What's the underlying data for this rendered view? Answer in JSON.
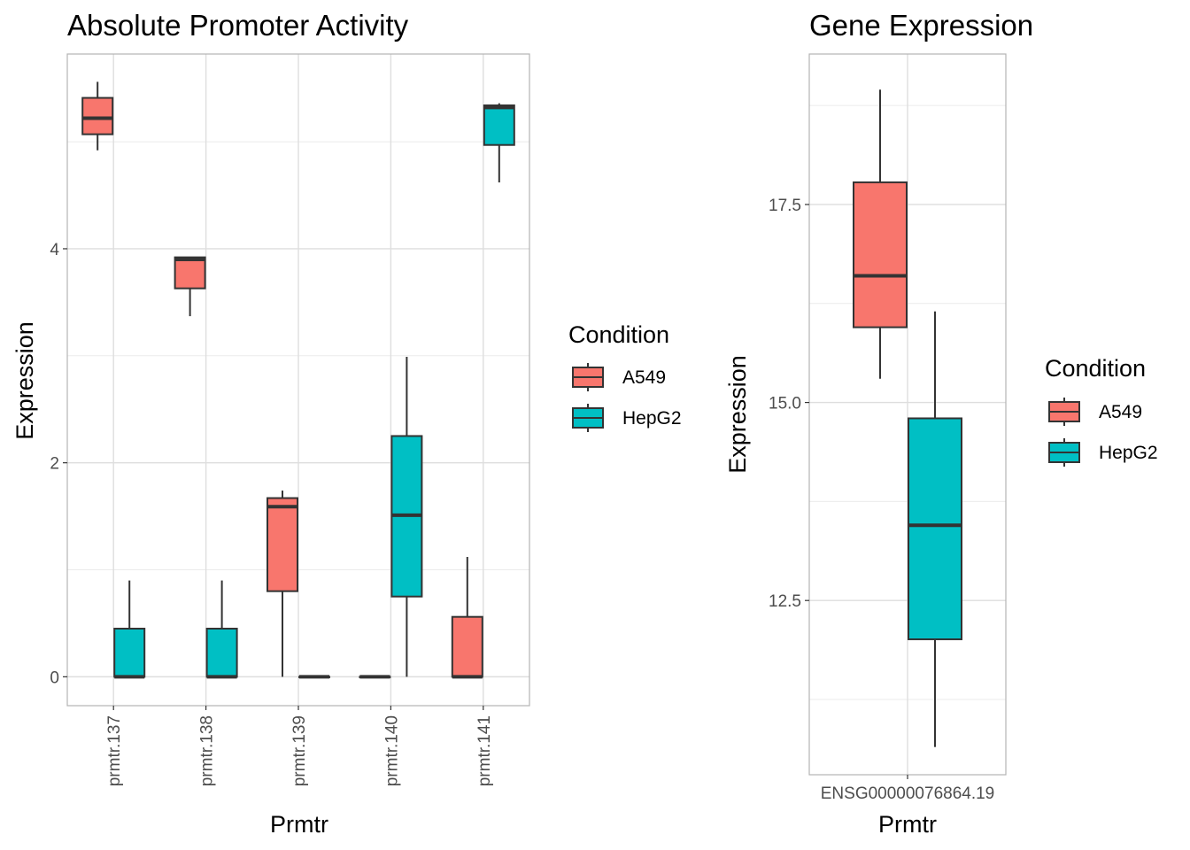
{
  "chart_data": [
    {
      "type": "boxplot",
      "title": "Absolute Promoter Activity",
      "xlabel": "Prmtr",
      "ylabel": "Expression",
      "categories": [
        "prmtr.137",
        "prmtr.138",
        "prmtr.139",
        "prmtr.140",
        "prmtr.141"
      ],
      "ylim": [
        -0.27,
        5.82
      ],
      "yticks": [
        "0",
        "2",
        "4"
      ],
      "ytick_values": [
        0,
        2,
        4
      ],
      "legend": {
        "title": "Condition",
        "position": "right",
        "entries": [
          "A549",
          "HepG2"
        ]
      },
      "series": [
        {
          "name": "A549",
          "color": "#F8766D",
          "boxes": [
            {
              "min": 4.92,
              "q1": 5.07,
              "median": 5.22,
              "q3": 5.41,
              "max": 5.56
            },
            {
              "min": 3.37,
              "q1": 3.63,
              "median": 3.9,
              "q3": 3.92,
              "max": 3.92
            },
            {
              "min": 0.0,
              "q1": 0.8,
              "median": 1.59,
              "q3": 1.67,
              "max": 1.74
            },
            {
              "min": 0.0,
              "q1": 0.0,
              "median": 0.0,
              "q3": 0.0,
              "max": 0.0
            },
            {
              "min": 0.0,
              "q1": 0.0,
              "median": 0.0,
              "q3": 0.56,
              "max": 1.12
            }
          ]
        },
        {
          "name": "HepG2",
          "color": "#00BFC4",
          "boxes": [
            {
              "min": 0.0,
              "q1": 0.0,
              "median": 0.0,
              "q3": 0.45,
              "max": 0.9
            },
            {
              "min": 0.0,
              "q1": 0.0,
              "median": 0.0,
              "q3": 0.45,
              "max": 0.9
            },
            {
              "min": 0.0,
              "q1": 0.0,
              "median": 0.0,
              "q3": 0.0,
              "max": 0.0
            },
            {
              "min": 0.0,
              "q1": 0.75,
              "median": 1.51,
              "q3": 2.25,
              "max": 2.99
            },
            {
              "min": 4.62,
              "q1": 4.97,
              "median": 5.32,
              "q3": 5.34,
              "max": 5.36
            }
          ]
        }
      ],
      "grid": true
    },
    {
      "type": "boxplot",
      "title": "Gene Expression",
      "xlabel": "Prmtr",
      "ylabel": "Expression",
      "categories": [
        "ENSG00000076864.19"
      ],
      "ylim": [
        10.3,
        19.4
      ],
      "yticks": [
        "12.5",
        "15.0",
        "17.5"
      ],
      "ytick_values": [
        12.5,
        15.0,
        17.5
      ],
      "legend": {
        "title": "Condition",
        "position": "right",
        "entries": [
          "A549",
          "HepG2"
        ]
      },
      "series": [
        {
          "name": "A549",
          "color": "#F8766D",
          "boxes": [
            {
              "min": 15.3,
              "q1": 15.95,
              "median": 16.6,
              "q3": 17.78,
              "max": 18.95
            }
          ]
        },
        {
          "name": "HepG2",
          "color": "#00BFC4",
          "boxes": [
            {
              "min": 10.65,
              "q1": 12.01,
              "median": 13.45,
              "q3": 14.8,
              "max": 16.15
            }
          ]
        }
      ],
      "grid": true
    }
  ]
}
